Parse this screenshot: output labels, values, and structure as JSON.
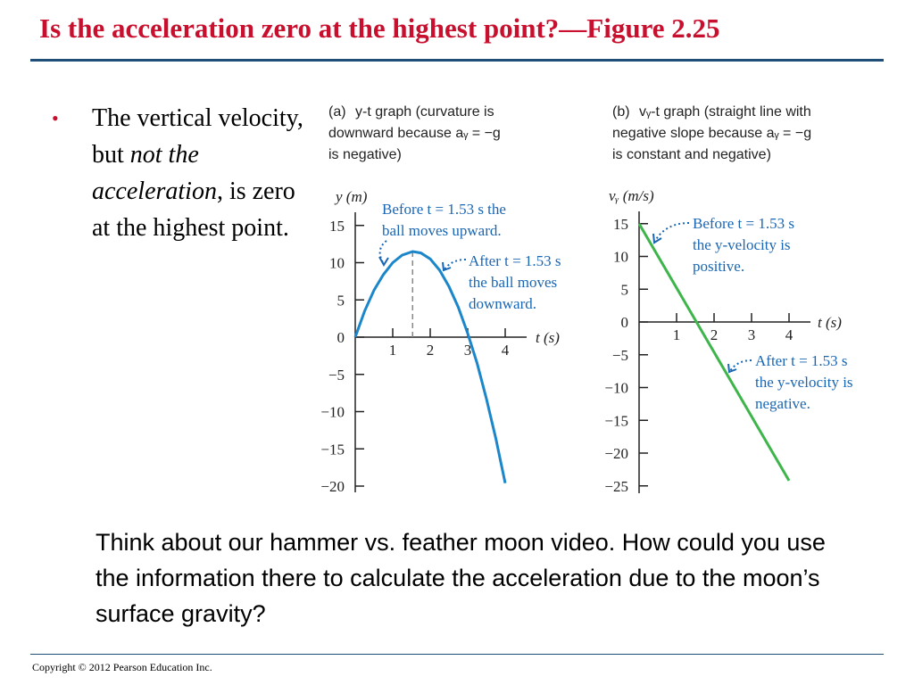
{
  "slide": {
    "title": "Is the acceleration zero at the highest point?—Figure 2.25",
    "bullet": {
      "before": "The vertical velocity, but ",
      "emphasis": "not the acceleration",
      "after": ", is zero at the highest point."
    },
    "question": "Think about our hammer vs. feather moon video.  How could you use the information there to calculate the acceleration due to the moon’s surface gravity?",
    "footer": "Copyright © 2012 Pearson Education Inc."
  },
  "colors": {
    "title": "#c8102e",
    "rule": "#1f4e79",
    "curve_a": "#1b86c9",
    "line_b": "#3db54a",
    "annotation": "#1a66b3"
  },
  "chart_data": [
    {
      "type": "line",
      "panel": "(a)",
      "caption": [
        "y-t graph (curvature is",
        "downward because aᵧ = −g",
        "is negative)"
      ],
      "xlabel": "t (s)",
      "ylabel": "y (m)",
      "xlim": [
        0,
        4.4
      ],
      "ylim": [
        -20,
        15
      ],
      "xticks": [
        1,
        2,
        3,
        4
      ],
      "yticks": [
        15,
        10,
        5,
        0,
        -5,
        -10,
        -15,
        -20
      ],
      "series": [
        {
          "x": [
            0,
            0.25,
            0.5,
            0.75,
            1.0,
            1.25,
            1.53,
            1.75,
            2.0,
            2.25,
            2.5,
            2.75,
            3.0,
            3.25,
            3.5,
            3.75,
            4.0
          ],
          "y": [
            0,
            3.5,
            6.3,
            8.4,
            10.0,
            11.0,
            11.5,
            11.3,
            10.5,
            9.0,
            6.8,
            4.0,
            0.5,
            -3.5,
            -8.3,
            -13.6,
            -19.6
          ]
        }
      ],
      "marker_line_x": 1.53,
      "annotations": [
        {
          "lines": [
            "Before t = 1.53 s the",
            "ball moves upward."
          ]
        },
        {
          "lines": [
            "After t = 1.53 s",
            "the ball moves",
            "downward."
          ]
        }
      ]
    },
    {
      "type": "line",
      "panel": "(b)",
      "caption": [
        "vᵧ-t graph (straight line with",
        "negative slope because aᵧ = −g",
        "is constant and negative)"
      ],
      "xlabel": "t (s)",
      "ylabel": "vᵧ (m/s)",
      "xlim": [
        0,
        4.4
      ],
      "ylim": [
        -25,
        15
      ],
      "xticks": [
        1,
        2,
        3,
        4
      ],
      "yticks": [
        15,
        10,
        5,
        0,
        -5,
        -10,
        -15,
        -20,
        -25
      ],
      "series": [
        {
          "x": [
            0,
            4.0
          ],
          "y": [
            15,
            -24.2
          ]
        }
      ],
      "annotations": [
        {
          "lines": [
            "Before t = 1.53 s",
            "the y-velocity is",
            "positive."
          ]
        },
        {
          "lines": [
            "After t = 1.53 s",
            "the y-velocity is",
            "negative."
          ]
        }
      ]
    }
  ]
}
